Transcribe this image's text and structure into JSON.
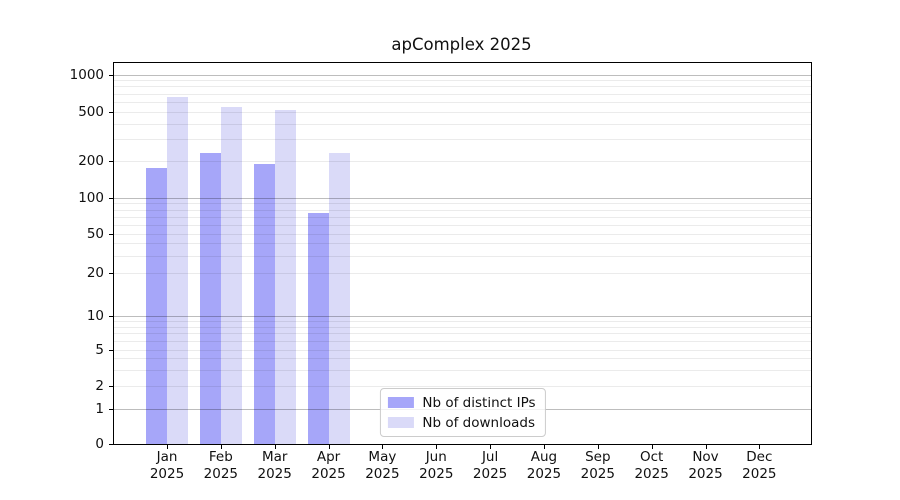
{
  "chart_data": {
    "type": "bar",
    "title": "apComplex 2025",
    "yscale": "symlog",
    "grid": true,
    "legend_position": "lower center",
    "yticks": [
      0,
      1,
      2,
      5,
      10,
      20,
      50,
      100,
      200,
      500,
      1000
    ],
    "major_gridline_values": [
      1,
      10,
      100,
      1000
    ],
    "minor_gridline_values": [
      2,
      3,
      4,
      5,
      6,
      7,
      8,
      9,
      20,
      30,
      40,
      50,
      60,
      70,
      80,
      90,
      200,
      300,
      400,
      500,
      600,
      700,
      800,
      900
    ],
    "ylim": [
      0,
      1200
    ],
    "categories": [
      {
        "month": "Jan",
        "year": "2025"
      },
      {
        "month": "Feb",
        "year": "2025"
      },
      {
        "month": "Mar",
        "year": "2025"
      },
      {
        "month": "Apr",
        "year": "2025"
      },
      {
        "month": "May",
        "year": "2025"
      },
      {
        "month": "Jun",
        "year": "2025"
      },
      {
        "month": "Jul",
        "year": "2025"
      },
      {
        "month": "Aug",
        "year": "2025"
      },
      {
        "month": "Sep",
        "year": "2025"
      },
      {
        "month": "Oct",
        "year": "2025"
      },
      {
        "month": "Nov",
        "year": "2025"
      },
      {
        "month": "Dec",
        "year": "2025"
      }
    ],
    "series": [
      {
        "name": "Nb of distinct IPs",
        "key": "distinct-ips",
        "color": "#a6a6f9",
        "values": [
          175,
          230,
          190,
          75,
          null,
          null,
          null,
          null,
          null,
          null,
          null,
          null
        ]
      },
      {
        "name": "Nb of downloads",
        "key": "downloads",
        "color": "#dadaf8",
        "values": [
          655,
          545,
          510,
          230,
          null,
          null,
          null,
          null,
          null,
          null,
          null,
          null
        ]
      }
    ],
    "colors": {
      "major_grid": "rgba(0,0,0,0.26)",
      "minor_grid": "rgba(0,0,0,0.08)",
      "spine": "#000000",
      "text": "#111111"
    }
  }
}
